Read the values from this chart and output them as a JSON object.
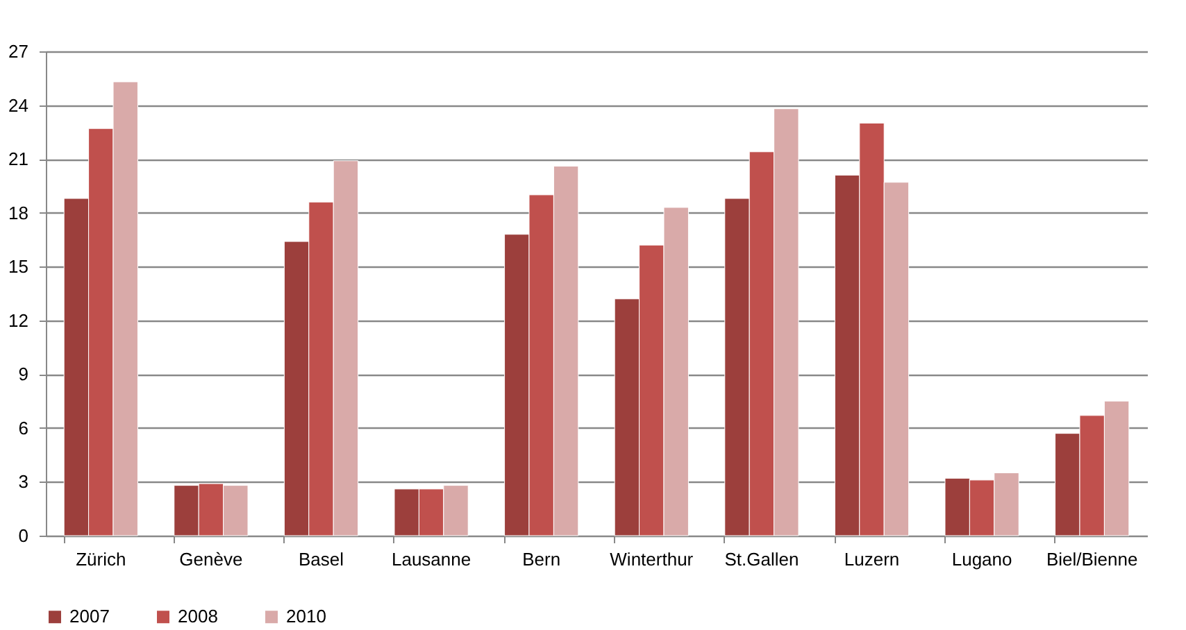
{
  "chart_data": {
    "type": "bar",
    "categories": [
      "Zürich",
      "Genève",
      "Basel",
      "Lausanne",
      "Bern",
      "Winterthur",
      "St.Gallen",
      "Luzern",
      "Lugano",
      "Biel/Bienne"
    ],
    "series": [
      {
        "name": "2007",
        "color": "#9c3f3c",
        "values": [
          18.8,
          2.8,
          16.4,
          2.6,
          16.8,
          13.2,
          18.8,
          20.1,
          3.2,
          5.7
        ]
      },
      {
        "name": "2008",
        "color": "#c0504d",
        "values": [
          22.7,
          2.9,
          18.6,
          2.6,
          19.0,
          16.2,
          21.4,
          23.0,
          3.1,
          6.7
        ]
      },
      {
        "name": "2010",
        "color": "#d9aaa9",
        "values": [
          25.3,
          2.8,
          20.9,
          2.8,
          20.6,
          18.3,
          23.8,
          19.7,
          3.5,
          7.5
        ]
      }
    ],
    "ylim": [
      0,
      27
    ],
    "yticks": [
      0,
      3,
      6,
      9,
      12,
      15,
      18,
      21,
      24,
      27
    ],
    "grid": "y",
    "legend": "bottom"
  }
}
